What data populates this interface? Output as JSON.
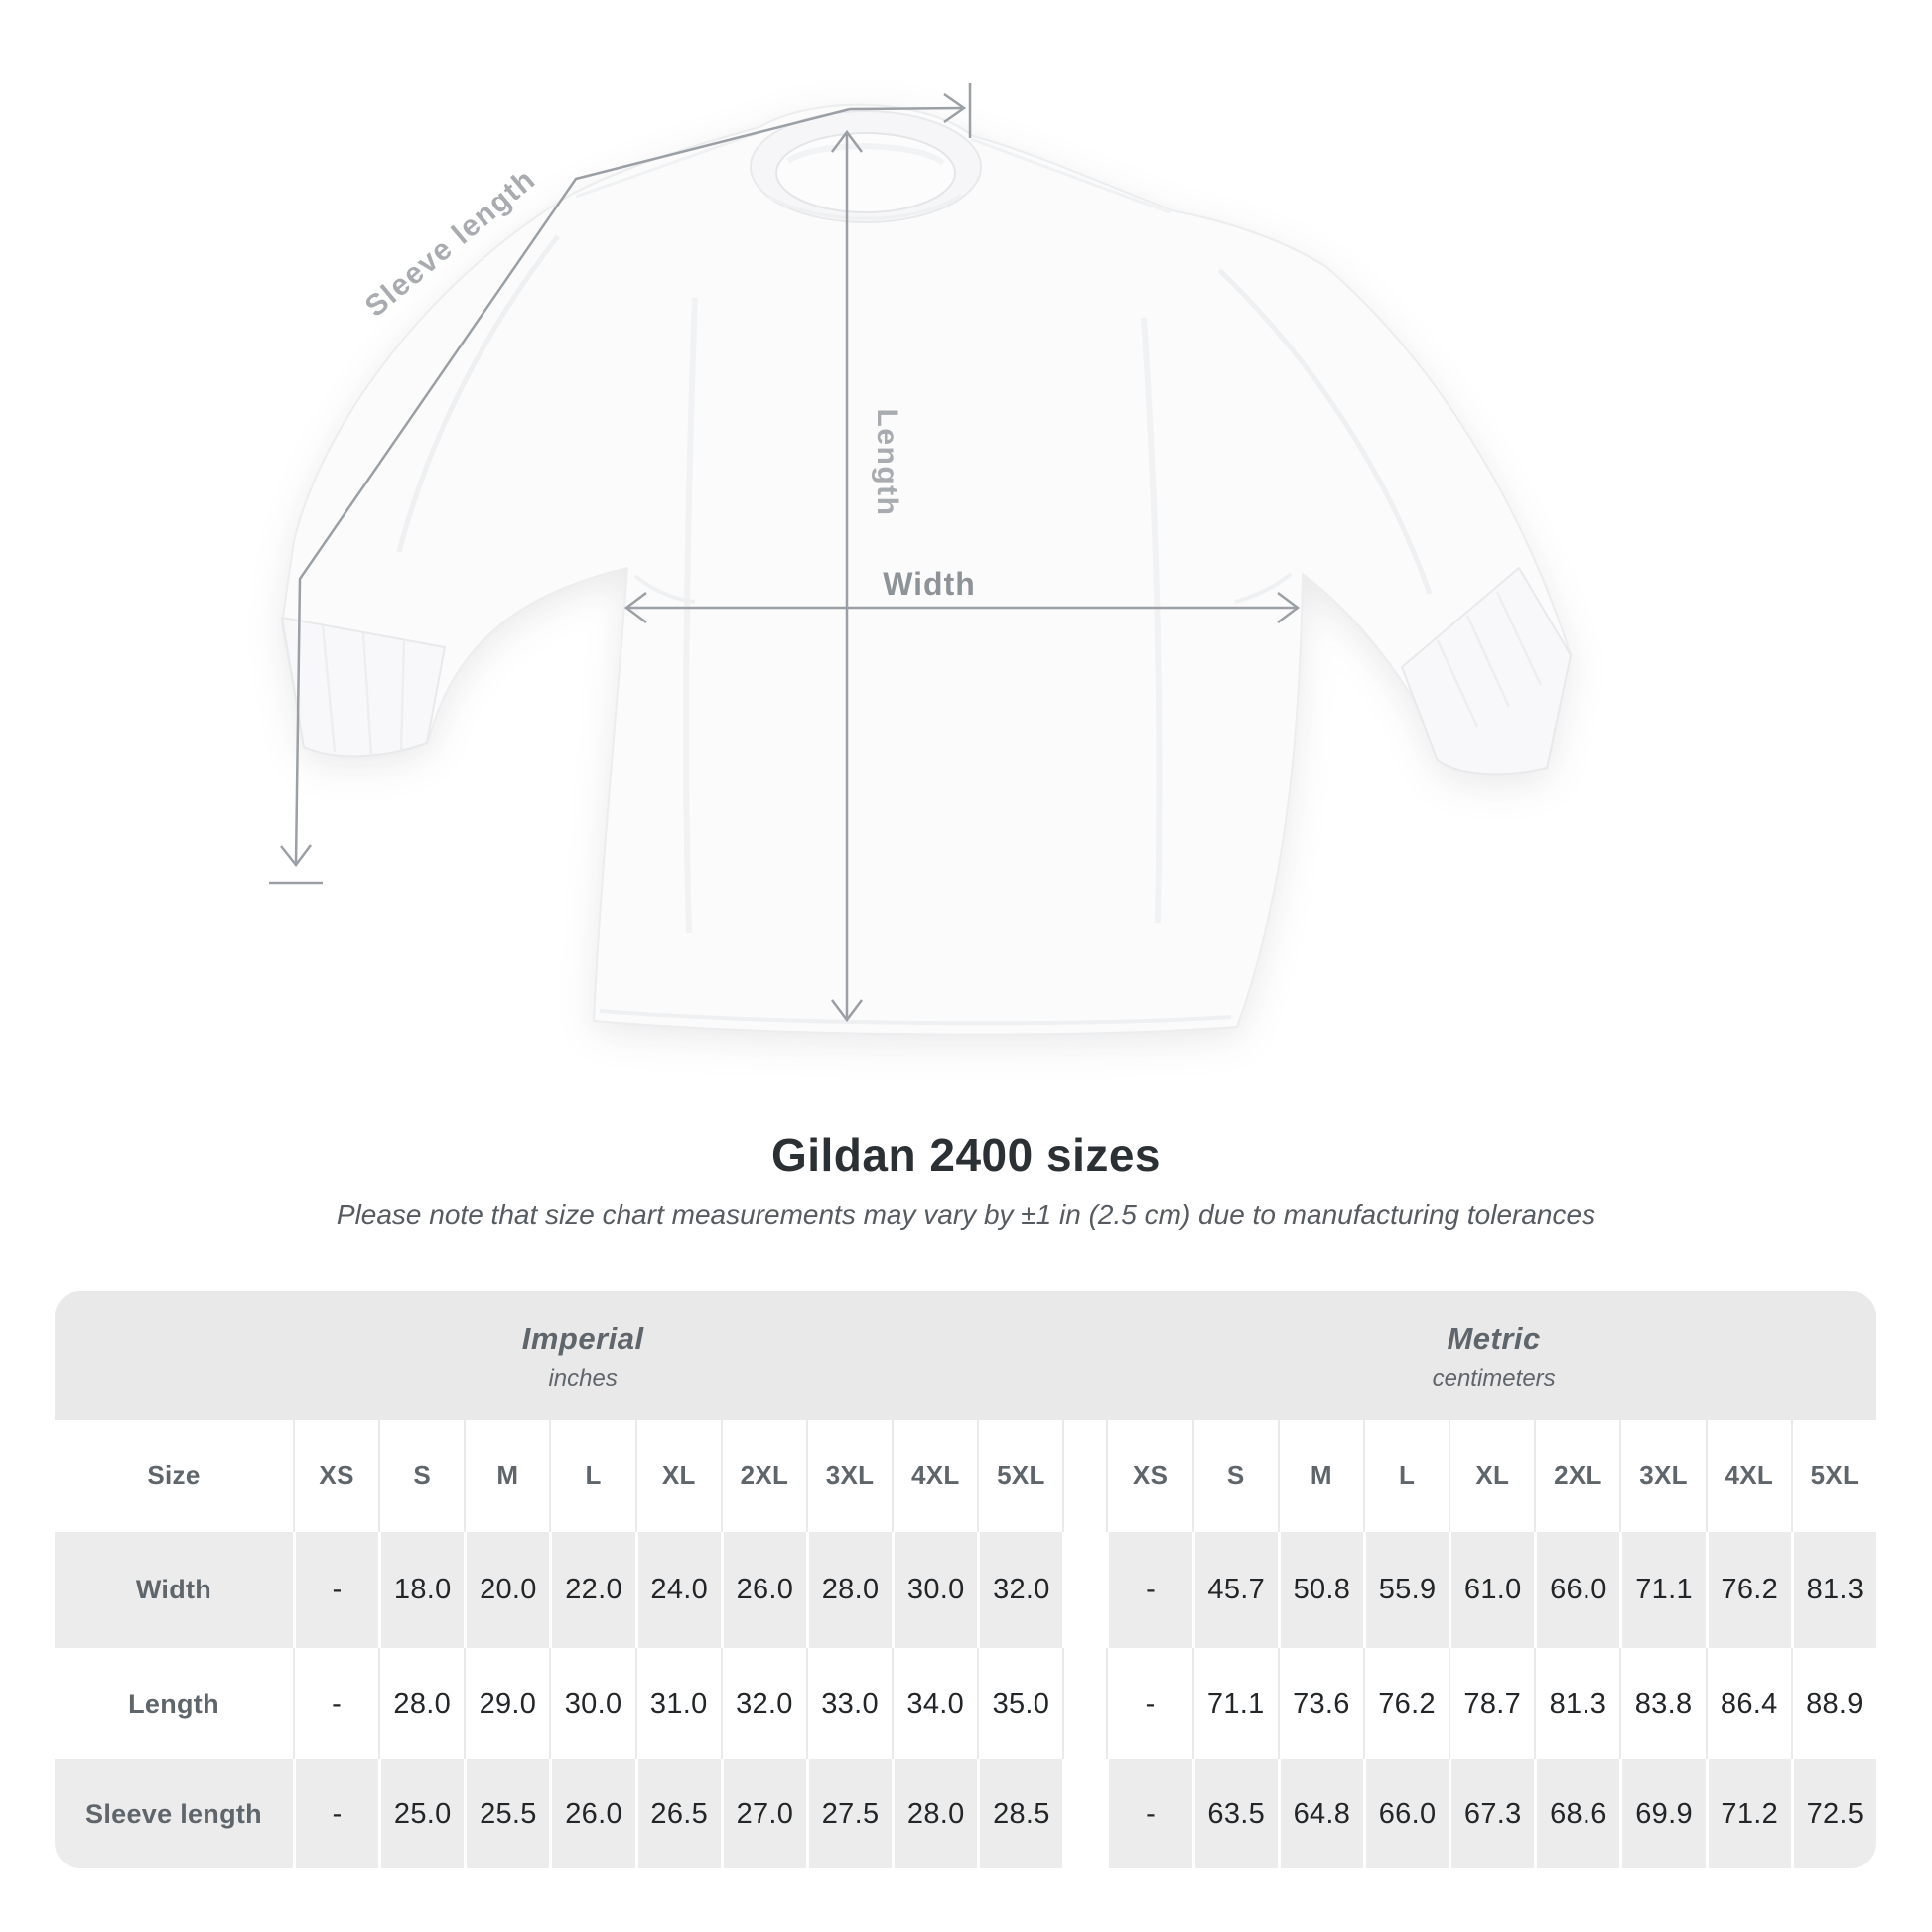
{
  "page": {
    "background": "#ffffff"
  },
  "diagram": {
    "labels": {
      "sleeve_length": "Sleeve length",
      "length": "Length",
      "width": "Width"
    },
    "line_color": "#9aa0a5",
    "label_color": "#a8acb0"
  },
  "chart_data": {
    "type": "table",
    "title": "Gildan 2400 sizes",
    "subtitle": "Please note that size chart measurements may vary by ±1 in (2.5 cm) due to manufacturing tolerances",
    "groups": [
      {
        "label": "Imperial",
        "unit": "inches"
      },
      {
        "label": "Metric",
        "unit": "centimeters"
      }
    ],
    "size_label": "Size",
    "sizes": [
      "XS",
      "S",
      "M",
      "L",
      "XL",
      "2XL",
      "3XL",
      "4XL",
      "5XL"
    ],
    "rows": [
      {
        "label": "Width",
        "imperial": [
          "-",
          "18.0",
          "20.0",
          "22.0",
          "24.0",
          "26.0",
          "28.0",
          "30.0",
          "32.0"
        ],
        "metric": [
          "-",
          "45.7",
          "50.8",
          "55.9",
          "61.0",
          "66.0",
          "71.1",
          "76.2",
          "81.3"
        ]
      },
      {
        "label": "Length",
        "imperial": [
          "-",
          "28.0",
          "29.0",
          "30.0",
          "31.0",
          "32.0",
          "33.0",
          "34.0",
          "35.0"
        ],
        "metric": [
          "-",
          "71.1",
          "73.6",
          "76.2",
          "78.7",
          "81.3",
          "83.8",
          "86.4",
          "88.9"
        ]
      },
      {
        "label": "Sleeve length",
        "imperial": [
          "-",
          "25.0",
          "25.5",
          "26.0",
          "26.5",
          "27.0",
          "27.5",
          "28.0",
          "28.5"
        ],
        "metric": [
          "-",
          "63.5",
          "64.8",
          "66.0",
          "67.3",
          "68.6",
          "69.9",
          "71.2",
          "72.5"
        ]
      }
    ]
  },
  "colors": {
    "band": "#e9e9ea",
    "stripe": "#ececec",
    "header_text": "#5e656b",
    "value_text": "#232629",
    "title_text": "#2b3034",
    "subtitle_text": "#555b60"
  }
}
